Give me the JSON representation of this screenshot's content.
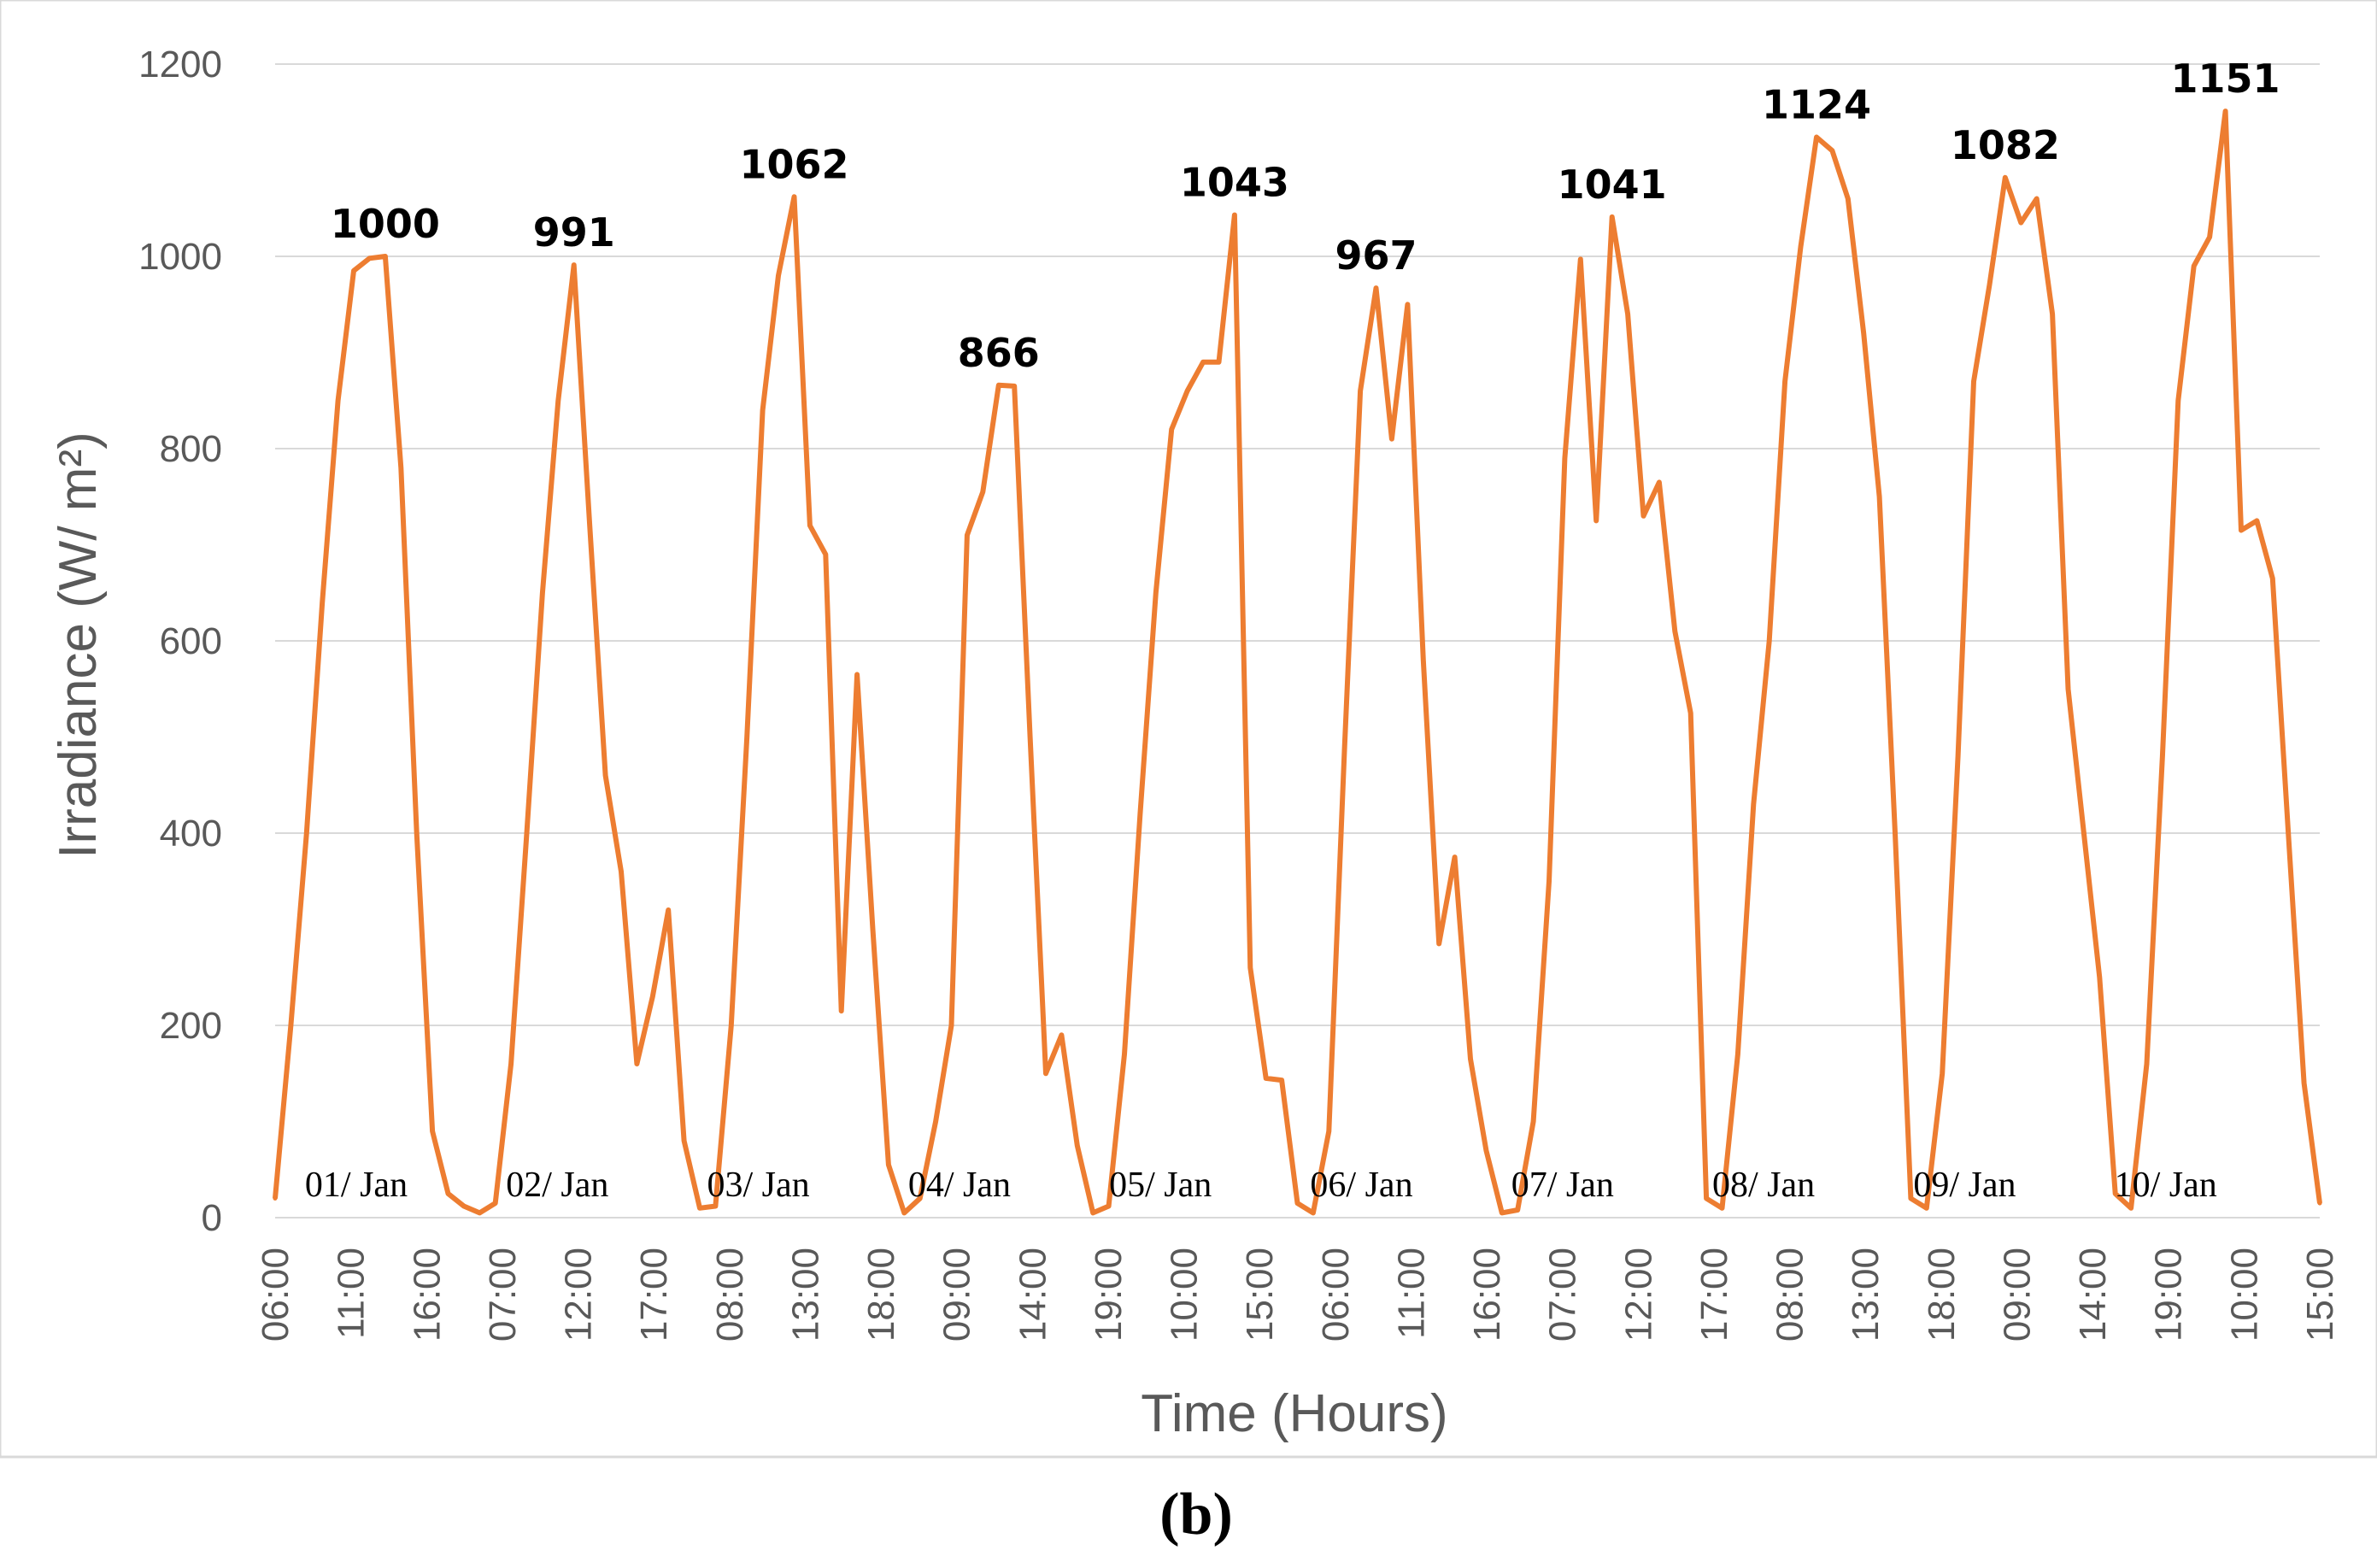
{
  "chart_data": {
    "type": "line",
    "title": "",
    "caption": "(b)",
    "xlabel": "Time (Hours)",
    "ylabel": "Irradiance (W/ m²)",
    "ylim": [
      0,
      1200
    ],
    "yticks": [
      0,
      200,
      400,
      600,
      800,
      1000,
      1200
    ],
    "grid": true,
    "line_color": "#ED7D31",
    "x_tick_labels": [
      "06:00",
      "11:00",
      "16:00",
      "07:00",
      "12:00",
      "17:00",
      "08:00",
      "13:00",
      "18:00",
      "09:00",
      "14:00",
      "19:00",
      "10:00",
      "15:00",
      "06:00",
      "11:00",
      "16:00",
      "07:00",
      "12:00",
      "17:00",
      "08:00",
      "13:00",
      "18:00",
      "09:00",
      "14:00",
      "19:00",
      "10:00",
      "15:00"
    ],
    "series": [
      {
        "name": "Irradiance",
        "values": [
          20,
          200,
          400,
          640,
          850,
          985,
          998,
          1000,
          780,
          400,
          90,
          25,
          12,
          5,
          15,
          160,
          400,
          650,
          850,
          991,
          720,
          460,
          360,
          160,
          230,
          320,
          80,
          10,
          12,
          200,
          500,
          840,
          980,
          1062,
          720,
          690,
          215,
          565,
          300,
          55,
          5,
          20,
          100,
          200,
          710,
          755,
          866,
          865,
          500,
          150,
          190,
          75,
          5,
          12,
          170,
          420,
          650,
          820,
          860,
          890,
          890,
          1043,
          260,
          145,
          143,
          15,
          5,
          90,
          490,
          860,
          967,
          810,
          950,
          580,
          285,
          375,
          165,
          70,
          5,
          8,
          100,
          350,
          790,
          997,
          725,
          1041,
          940,
          730,
          765,
          610,
          525,
          20,
          10,
          170,
          430,
          600,
          870,
          1010,
          1124,
          1110,
          1060,
          920,
          750,
          400,
          20,
          10,
          150,
          480,
          870,
          970,
          1082,
          1035,
          1060,
          940,
          550,
          400,
          250,
          25,
          10,
          160,
          480,
          850,
          990,
          1020,
          1151,
          715,
          725,
          665,
          400,
          140,
          15
        ]
      }
    ],
    "peak_labels": [
      {
        "text": "1000",
        "value": 1000
      },
      {
        "text": "991",
        "value": 991
      },
      {
        "text": "1062",
        "value": 1062
      },
      {
        "text": "866",
        "value": 866
      },
      {
        "text": "1043",
        "value": 1043
      },
      {
        "text": "967",
        "value": 967
      },
      {
        "text": "1041",
        "value": 1041
      },
      {
        "text": "1124",
        "value": 1124
      },
      {
        "text": "1082",
        "value": 1082
      },
      {
        "text": "1151",
        "value": 1151
      }
    ],
    "day_labels": [
      "01/ Jan",
      "02/ Jan",
      "03/ Jan",
      "04/ Jan",
      "05/ Jan",
      "06/ Jan",
      "07/ Jan",
      "08/ Jan",
      "09/ Jan",
      "10/ Jan"
    ]
  }
}
